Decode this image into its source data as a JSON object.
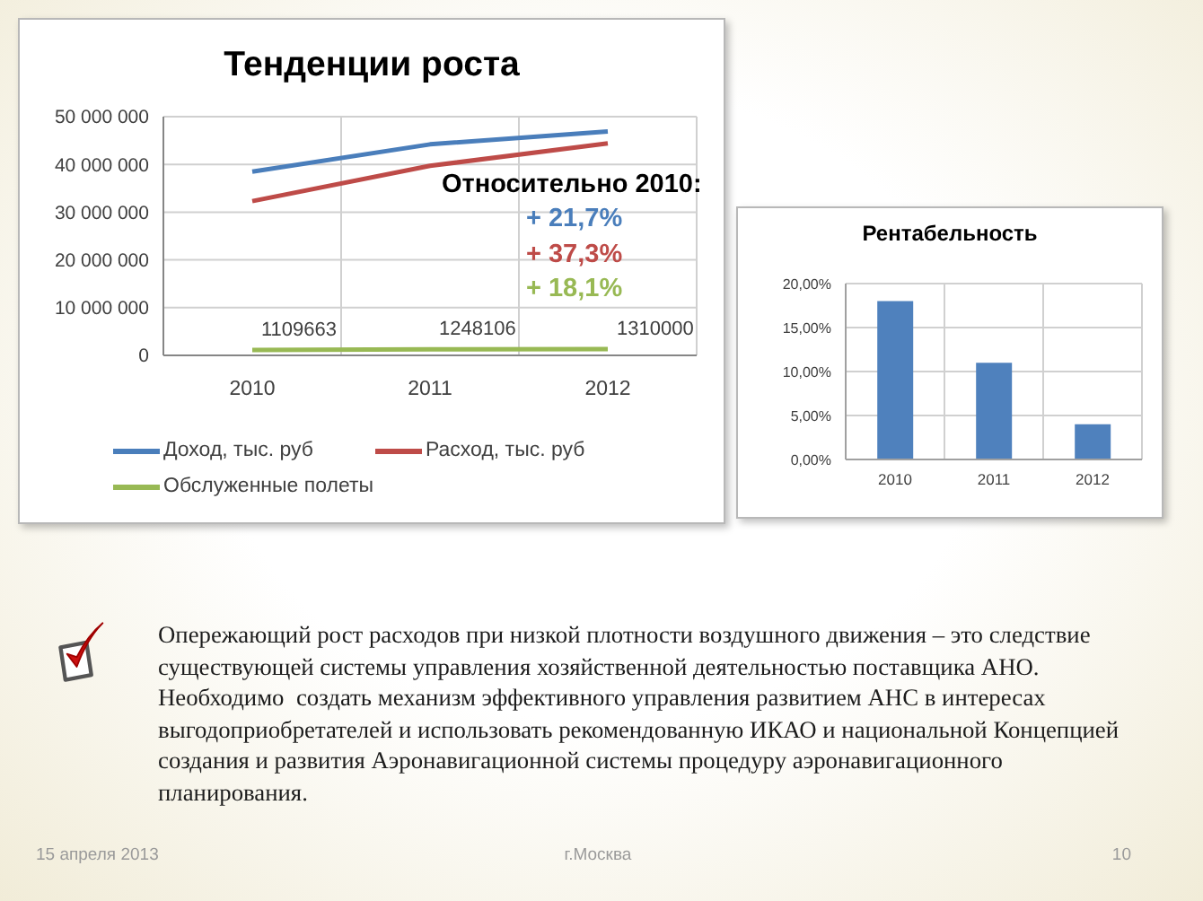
{
  "chart_data": [
    {
      "type": "line",
      "title": "Тенденции роста",
      "categories": [
        "2010",
        "2011",
        "2012"
      ],
      "series": [
        {
          "name": "Доход, тыс. руб",
          "color": "#4a7ebb",
          "values": [
            38500000,
            44200000,
            46900000
          ]
        },
        {
          "name": "Расход, тыс. руб",
          "color": "#be4b48",
          "values": [
            32300000,
            39700000,
            44400000
          ]
        },
        {
          "name": "Обслуженные полеты",
          "color": "#98b954",
          "values": [
            1109663,
            1248106,
            1310000
          ],
          "value_labels": [
            "1109663",
            "1248106",
            "1310000"
          ]
        }
      ],
      "ylim": [
        0,
        50000000
      ],
      "yticks": [
        0,
        {
          "value": 10000000,
          "label": "10 000 000"
        },
        {
          "value": 20000000,
          "label": "20 000 000"
        },
        {
          "value": 30000000,
          "label": "30 000 000"
        },
        {
          "value": 40000000,
          "label": "40 000 000"
        },
        {
          "value": 50000000,
          "label": "50 000 000"
        }
      ],
      "grid": true,
      "legend": "bottom",
      "marker": "none",
      "annotations": [
        "Относительно 2010:",
        "+ 21,7%",
        "+ 37,3%",
        "+ 18,1%"
      ]
    },
    {
      "type": "bar",
      "title": "Рентабельность",
      "categories": [
        "2010",
        "2011",
        "2012"
      ],
      "values": [
        18,
        11,
        4
      ],
      "color": "#4f81bd",
      "ylim": [
        0,
        20
      ],
      "yticks": [
        {
          "value": 0,
          "label": "0,00%"
        },
        {
          "value": 5,
          "label": "5,00%"
        },
        {
          "value": 10,
          "label": "10,00%"
        },
        {
          "value": 15,
          "label": "15,00%"
        },
        {
          "value": 20,
          "label": "20,00%"
        }
      ],
      "grid": true
    },
    {
      "type": "other",
      "annotations": [
        "Опережающий рост расходов при низкой плотности воздушного движения – это следствие существующей системы управления хозяйственной деятельностью поставщика АНО.  Необходимо  создать механизм эффективного управления развитием АНС в интересах выгодоприобретателей и использовать рекомендованную ИКАО и национальной Концепцией создания и развития Аэронавигационной системы процедуру аэронавигационного планирования.",
        "15 апреля 2013",
        "г.Москва",
        "10"
      ]
    }
  ]
}
